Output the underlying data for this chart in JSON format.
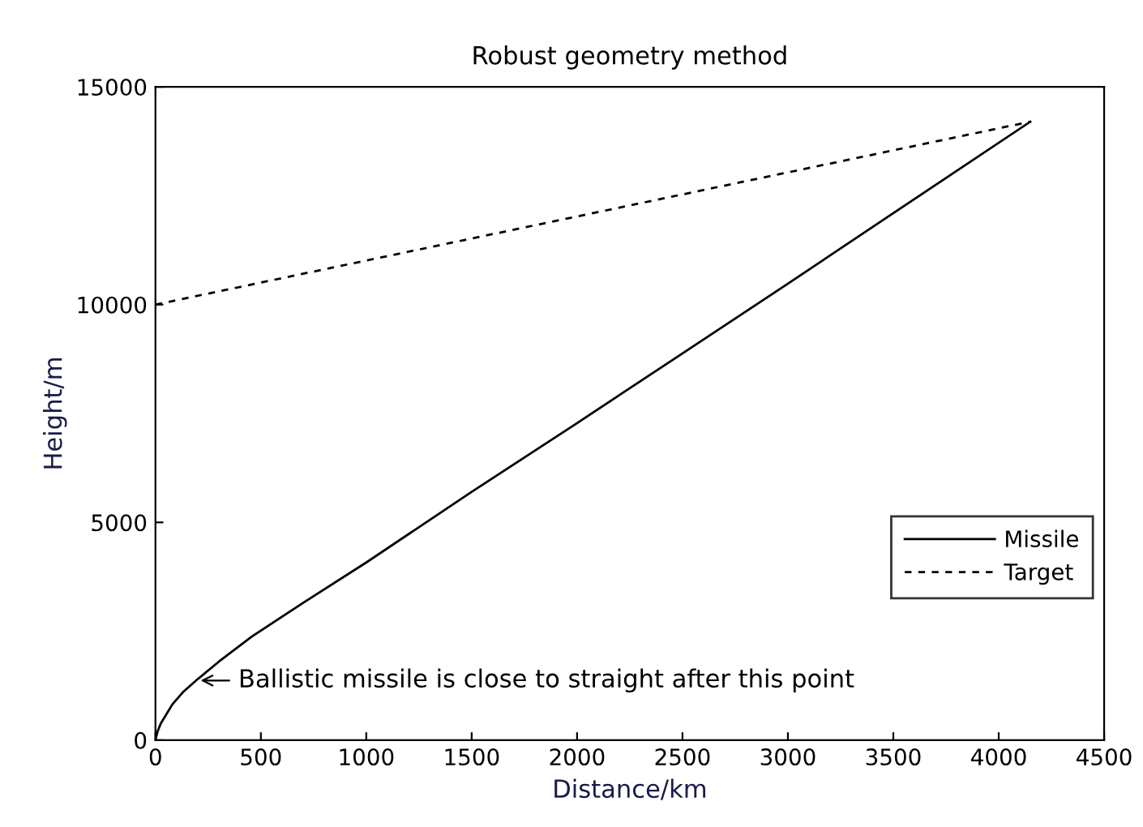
{
  "chart_data": {
    "type": "line",
    "title": "Robust geometry method",
    "xlabel": "Distance/km",
    "ylabel": "Height/m",
    "xlim": [
      0,
      4500
    ],
    "ylim": [
      0,
      15000
    ],
    "xticks": [
      0,
      500,
      1000,
      1500,
      2000,
      2500,
      3000,
      3500,
      4000,
      4500
    ],
    "yticks": [
      0,
      5000,
      10000,
      15000
    ],
    "grid": false,
    "legend": "bottom right",
    "series": [
      {
        "name": "Missile",
        "color": "#000000",
        "line_style": "solid",
        "x": [
          0,
          10,
          25,
          50,
          80,
          130,
          193,
          300,
          457,
          700,
          1000,
          1500,
          2000,
          2500,
          3000,
          3500,
          4150
        ],
        "values": [
          0,
          200,
          380,
          580,
          820,
          1100,
          1370,
          1800,
          2380,
          3150,
          4080,
          5700,
          7280,
          8880,
          10480,
          12100,
          14200
        ]
      },
      {
        "name": "Target",
        "color": "#000000",
        "line_style": "dashed",
        "x": [
          0,
          4150
        ],
        "values": [
          10000,
          14200
        ]
      }
    ],
    "annotations": [
      {
        "text": "Ballistic missile is close to straight after this point",
        "x": 193,
        "y": 1370
      }
    ]
  }
}
